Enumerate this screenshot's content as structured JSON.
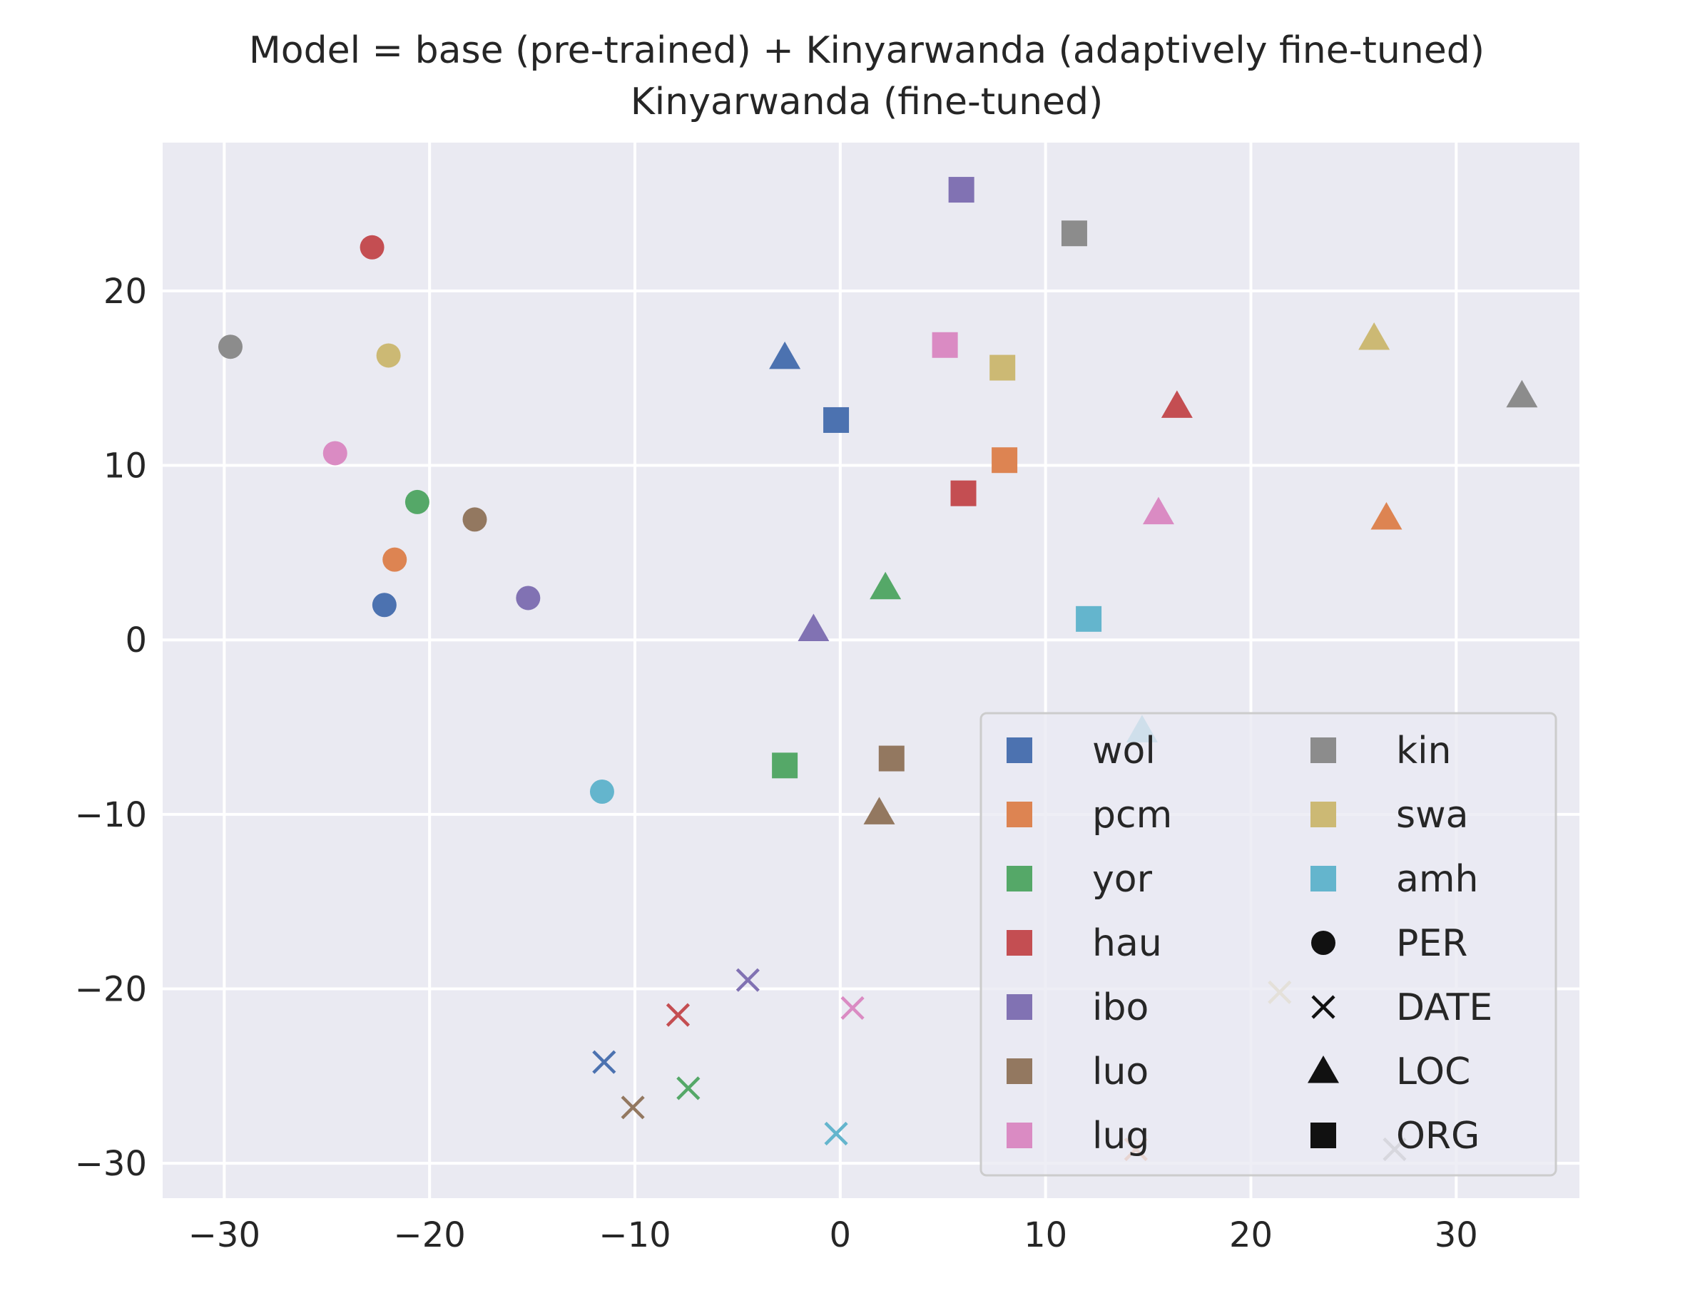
{
  "chart_data": {
    "type": "scatter",
    "title": "Model = base (pre-trained) + Kinyarwanda (adaptively fine-tuned)",
    "subtitle": "Kinyarwanda (fine-tuned)",
    "xlabel": "",
    "ylabel": "",
    "xlim": [
      -33,
      36
    ],
    "ylim": [
      -32,
      28.5
    ],
    "xticks": [
      -30,
      -20,
      -10,
      0,
      10,
      20,
      30
    ],
    "yticks": [
      -30,
      -20,
      -10,
      0,
      10,
      20
    ],
    "xtick_labels": [
      "−30",
      "−20",
      "−10",
      "0",
      "10",
      "20",
      "30"
    ],
    "ytick_labels": [
      "−30",
      "−20",
      "−10",
      "0",
      "10",
      "20"
    ],
    "grid": true,
    "background": "#eaeaf2",
    "legend_position": "lower-right",
    "languages": [
      {
        "name": "wol",
        "color": "#4c72b0"
      },
      {
        "name": "pcm",
        "color": "#dd8452"
      },
      {
        "name": "yor",
        "color": "#55a868"
      },
      {
        "name": "hau",
        "color": "#c44e52"
      },
      {
        "name": "ibo",
        "color": "#8172b3"
      },
      {
        "name": "luo",
        "color": "#937860"
      },
      {
        "name": "lug",
        "color": "#da8bc3"
      },
      {
        "name": "kin",
        "color": "#8c8c8c"
      },
      {
        "name": "swa",
        "color": "#ccb974"
      },
      {
        "name": "amh",
        "color": "#64b5cd"
      }
    ],
    "entity_types": [
      {
        "name": "PER",
        "marker": "circle"
      },
      {
        "name": "DATE",
        "marker": "x"
      },
      {
        "name": "LOC",
        "marker": "triangle"
      },
      {
        "name": "ORG",
        "marker": "square"
      }
    ],
    "points": [
      {
        "lang": "wol",
        "type": "PER",
        "x": -22.2,
        "y": 2.0
      },
      {
        "lang": "pcm",
        "type": "PER",
        "x": -21.7,
        "y": 4.6
      },
      {
        "lang": "yor",
        "type": "PER",
        "x": -20.6,
        "y": 7.9
      },
      {
        "lang": "hau",
        "type": "PER",
        "x": -22.8,
        "y": 22.5
      },
      {
        "lang": "ibo",
        "type": "PER",
        "x": -15.2,
        "y": 2.4
      },
      {
        "lang": "luo",
        "type": "PER",
        "x": -17.8,
        "y": 6.9
      },
      {
        "lang": "lug",
        "type": "PER",
        "x": -24.6,
        "y": 10.7
      },
      {
        "lang": "kin",
        "type": "PER",
        "x": -29.7,
        "y": 16.8
      },
      {
        "lang": "swa",
        "type": "PER",
        "x": -22.0,
        "y": 16.3
      },
      {
        "lang": "amh",
        "type": "PER",
        "x": -11.6,
        "y": -8.7
      },
      {
        "lang": "wol",
        "type": "DATE",
        "x": -11.5,
        "y": -24.2
      },
      {
        "lang": "pcm",
        "type": "DATE",
        "x": 14.4,
        "y": -29.2
      },
      {
        "lang": "yor",
        "type": "DATE",
        "x": -7.4,
        "y": -25.7
      },
      {
        "lang": "hau",
        "type": "DATE",
        "x": -7.9,
        "y": -21.5
      },
      {
        "lang": "ibo",
        "type": "DATE",
        "x": -4.5,
        "y": -19.5
      },
      {
        "lang": "luo",
        "type": "DATE",
        "x": -10.1,
        "y": -26.8
      },
      {
        "lang": "lug",
        "type": "DATE",
        "x": 0.6,
        "y": -21.1
      },
      {
        "lang": "kin",
        "type": "DATE",
        "x": 27.0,
        "y": -29.2
      },
      {
        "lang": "swa",
        "type": "DATE",
        "x": 21.4,
        "y": -20.2
      },
      {
        "lang": "amh",
        "type": "DATE",
        "x": -0.2,
        "y": -28.3
      },
      {
        "lang": "wol",
        "type": "LOC",
        "x": -2.7,
        "y": 16.2
      },
      {
        "lang": "pcm",
        "type": "LOC",
        "x": 26.6,
        "y": 7.0
      },
      {
        "lang": "yor",
        "type": "LOC",
        "x": 2.2,
        "y": 3.0
      },
      {
        "lang": "hau",
        "type": "LOC",
        "x": 16.4,
        "y": 13.4
      },
      {
        "lang": "ibo",
        "type": "LOC",
        "x": -1.3,
        "y": 0.6
      },
      {
        "lang": "luo",
        "type": "LOC",
        "x": 1.9,
        "y": -9.9
      },
      {
        "lang": "lug",
        "type": "LOC",
        "x": 15.5,
        "y": 7.3
      },
      {
        "lang": "kin",
        "type": "LOC",
        "x": 33.2,
        "y": 14.0
      },
      {
        "lang": "swa",
        "type": "LOC",
        "x": 26.0,
        "y": 17.3
      },
      {
        "lang": "amh",
        "type": "LOC",
        "x": 14.7,
        "y": -5.2
      },
      {
        "lang": "wol",
        "type": "ORG",
        "x": -0.2,
        "y": 12.6
      },
      {
        "lang": "pcm",
        "type": "ORG",
        "x": 8.0,
        "y": 10.3
      },
      {
        "lang": "yor",
        "type": "ORG",
        "x": -2.7,
        "y": -7.2
      },
      {
        "lang": "hau",
        "type": "ORG",
        "x": 6.0,
        "y": 8.4
      },
      {
        "lang": "ibo",
        "type": "ORG",
        "x": 5.9,
        "y": 25.8
      },
      {
        "lang": "luo",
        "type": "ORG",
        "x": 2.5,
        "y": -6.8
      },
      {
        "lang": "lug",
        "type": "ORG",
        "x": 5.1,
        "y": 16.9
      },
      {
        "lang": "kin",
        "type": "ORG",
        "x": 11.4,
        "y": 23.3
      },
      {
        "lang": "swa",
        "type": "ORG",
        "x": 7.9,
        "y": 15.6
      },
      {
        "lang": "amh",
        "type": "ORG",
        "x": 12.1,
        "y": 1.2
      }
    ]
  }
}
